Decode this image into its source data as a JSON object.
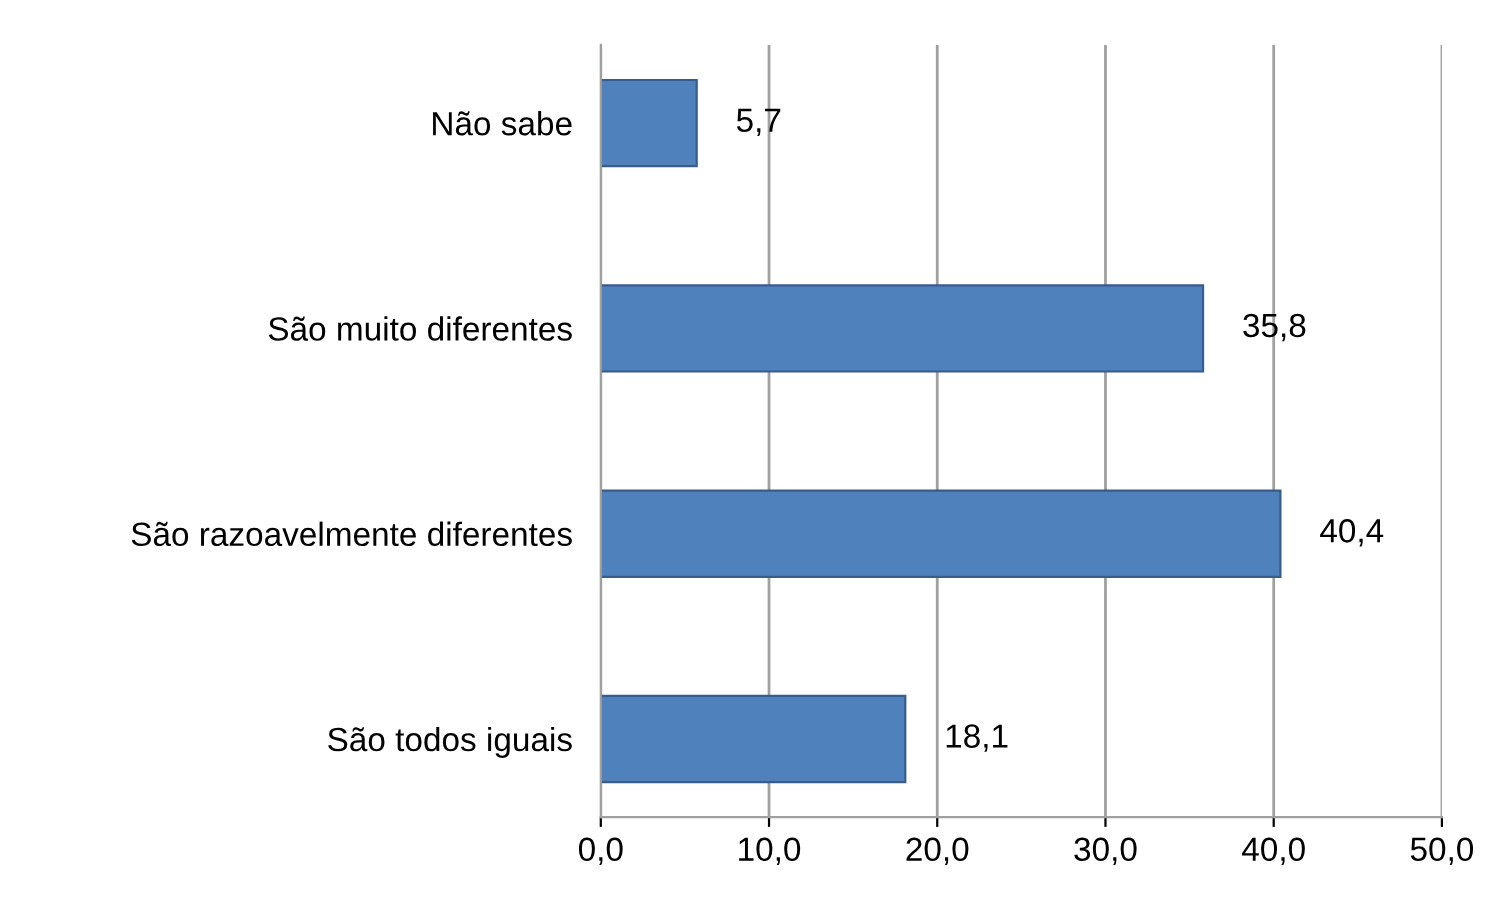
{
  "chart_data": {
    "type": "bar",
    "orientation": "horizontal",
    "categories": [
      "Não sabe",
      "São muito diferentes",
      "São razoavelmente diferentes",
      "São todos iguais"
    ],
    "values": [
      5.7,
      35.8,
      40.4,
      18.1
    ],
    "value_labels": [
      "5,7",
      "35,8",
      "40,4",
      "18,1"
    ],
    "color": "#4f81bd",
    "xlim": [
      0,
      50
    ],
    "xticks": [
      {
        "value": 0,
        "label": "0,0"
      },
      {
        "value": 10,
        "label": "10,0"
      },
      {
        "value": 20,
        "label": "20,0"
      },
      {
        "value": 30,
        "label": "30,0"
      },
      {
        "value": 40,
        "label": "40,0"
      },
      {
        "value": 50,
        "label": "50,0"
      }
    ],
    "grid": "x"
  }
}
